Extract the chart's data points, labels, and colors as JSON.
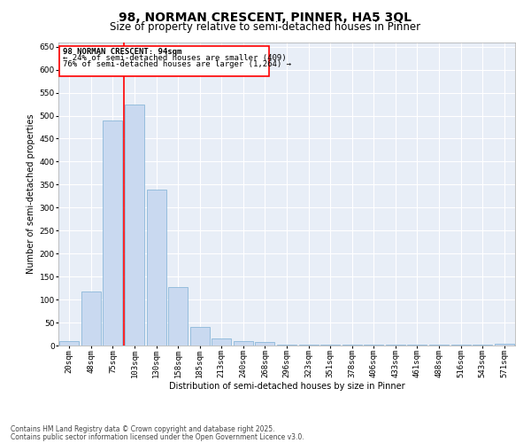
{
  "title": "98, NORMAN CRESCENT, PINNER, HA5 3QL",
  "subtitle": "Size of property relative to semi-detached houses in Pinner",
  "xlabel": "Distribution of semi-detached houses by size in Pinner",
  "ylabel": "Number of semi-detached properties",
  "categories": [
    "20sqm",
    "48sqm",
    "75sqm",
    "103sqm",
    "130sqm",
    "158sqm",
    "185sqm",
    "213sqm",
    "240sqm",
    "268sqm",
    "296sqm",
    "323sqm",
    "351sqm",
    "378sqm",
    "406sqm",
    "433sqm",
    "461sqm",
    "488sqm",
    "516sqm",
    "543sqm",
    "571sqm"
  ],
  "values": [
    10,
    118,
    490,
    525,
    340,
    127,
    40,
    16,
    9,
    7,
    2,
    2,
    2,
    2,
    2,
    2,
    2,
    2,
    2,
    2,
    3
  ],
  "bar_color": "#c9d9f0",
  "bar_edge_color": "#7bafd4",
  "bg_color": "#e8eef7",
  "grid_color": "#ffffff",
  "annotation_line1": "98 NORMAN CRESCENT: 94sqm",
  "annotation_line2": "← 24% of semi-detached houses are smaller (409)",
  "annotation_line3": "76% of semi-detached houses are larger (1,264) →",
  "ylim": [
    0,
    660
  ],
  "yticks": [
    0,
    50,
    100,
    150,
    200,
    250,
    300,
    350,
    400,
    450,
    500,
    550,
    600,
    650
  ],
  "footer_line1": "Contains HM Land Registry data © Crown copyright and database right 2025.",
  "footer_line2": "Contains public sector information licensed under the Open Government Licence v3.0.",
  "title_fontsize": 10,
  "subtitle_fontsize": 8.5,
  "axis_label_fontsize": 7,
  "tick_fontsize": 6.5,
  "annotation_fontsize": 6.5,
  "footer_fontsize": 5.5,
  "red_line_x": 2.5
}
